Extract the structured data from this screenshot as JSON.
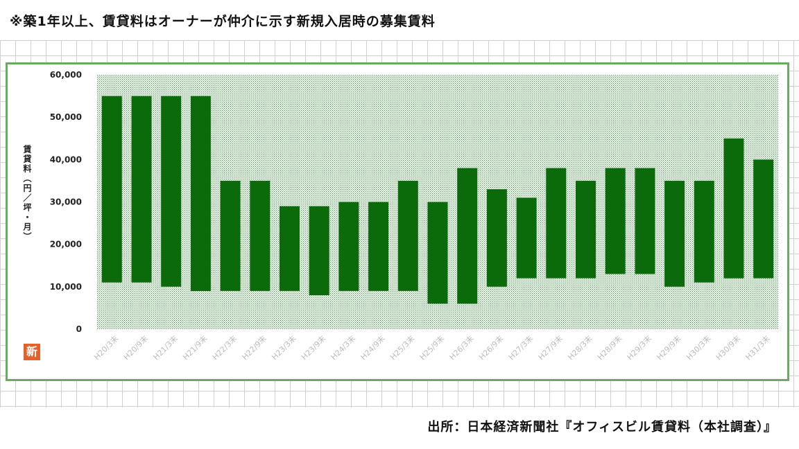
{
  "header": {
    "note": "※築1年以上、賃貸料はオーナーが仲介に示す新規入居時の募集賃料"
  },
  "footer": {
    "source": "出所：日本経済新聞社『オフィスビル賃貸料（本社調査）』"
  },
  "logo": {
    "text": "新"
  },
  "chart_data": {
    "type": "bar",
    "subtype": "floating-range",
    "ylabel": "賃貸料（円／坪・月）",
    "ylim": [
      0,
      60000
    ],
    "yticks": [
      0,
      10000,
      20000,
      30000,
      40000,
      50000,
      60000
    ],
    "ytick_labels": [
      "0",
      "10,000",
      "20,000",
      "30,000",
      "40,000",
      "50,000",
      "60,000"
    ],
    "categories": [
      "H20/3末",
      "H20/9末",
      "H21/3末",
      "H21/9末",
      "H22/3末",
      "H22/9末",
      "H23/3末",
      "H23/9末",
      "H24/3末",
      "H24/9末",
      "H25/3末",
      "H25/9末",
      "H26/3末",
      "H26/9末",
      "H27/3末",
      "H27/9末",
      "H28/3末",
      "H28/9末",
      "H29/3末",
      "H29/9末",
      "H30/3末",
      "H30/9末",
      "H31/3末"
    ],
    "series": [
      {
        "low": [
          11000,
          11000,
          10000,
          9000,
          9000,
          9000,
          9000,
          8000,
          9000,
          9000,
          9000,
          6000,
          6000,
          10000,
          12000,
          12000,
          12000,
          13000,
          13000,
          10000,
          11000,
          12000,
          12000
        ],
        "high": [
          55000,
          55000,
          55000,
          55000,
          35000,
          35000,
          29000,
          29000,
          30000,
          30000,
          35000,
          30000,
          38000,
          33000,
          31000,
          38000,
          35000,
          38000,
          38000,
          35000,
          35000,
          45000,
          40000
        ]
      }
    ],
    "colors": {
      "bar": "#0b6b0b",
      "plot_bg": "#c8dcc8",
      "frame": "#6aaa64"
    },
    "grid": false
  }
}
